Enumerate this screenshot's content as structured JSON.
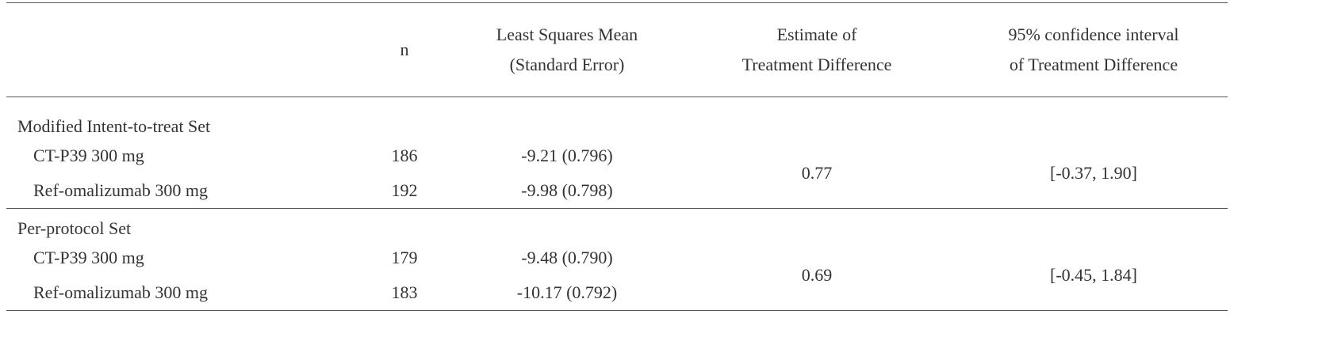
{
  "table": {
    "columns": [
      [
        "n"
      ],
      [
        "Least Squares Mean",
        "(Standard Error)"
      ],
      [
        "Estimate of",
        "Treatment Difference"
      ],
      [
        "95% confidence interval",
        "of Treatment Difference"
      ]
    ],
    "sections": [
      {
        "label": "Modified Intent-to-treat Set",
        "rows": [
          [
            "CT-P39 300 mg",
            186,
            "-9.21 (0.796)"
          ],
          [
            "Ref-omalizumab 300 mg",
            192,
            "-9.98 (0.798)"
          ]
        ],
        "estimate": 0.77,
        "ci": "[-0.37, 1.90]"
      },
      {
        "label": "Per-protocol Set",
        "rows": [
          [
            "CT-P39 300 mg",
            179,
            "-9.48 (0.790)"
          ],
          [
            "Ref-omalizumab 300 mg",
            183,
            "-10.17 (0.792)"
          ]
        ],
        "estimate": 0.69,
        "ci": "[-0.45, 1.84]"
      }
    ]
  }
}
